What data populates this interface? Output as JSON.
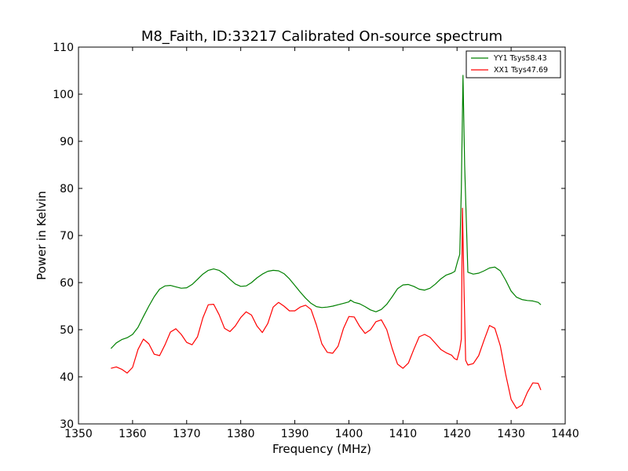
{
  "chart_data": {
    "type": "line",
    "title": "M8_Faith, ID:33217 Calibrated On-source spectrum",
    "xlabel": "Frequency (MHz)",
    "ylabel": "Power in Kelvin",
    "xlim": [
      1350,
      1440
    ],
    "ylim": [
      30,
      110
    ],
    "xticks": [
      1350,
      1360,
      1370,
      1380,
      1390,
      1400,
      1410,
      1420,
      1430,
      1440
    ],
    "yticks": [
      30,
      40,
      50,
      60,
      70,
      80,
      90,
      100,
      110
    ],
    "grid": false,
    "legend_position": "top-right",
    "series": [
      {
        "name": "YY1 Tsys58.43",
        "color": "#008000",
        "x": [
          1356,
          1357,
          1358,
          1359,
          1360,
          1361,
          1362,
          1363,
          1364,
          1365,
          1366,
          1367,
          1368,
          1369,
          1370,
          1371,
          1372,
          1373,
          1374,
          1375,
          1376,
          1377,
          1378,
          1379,
          1380,
          1381,
          1382,
          1383,
          1384,
          1385,
          1386,
          1387,
          1388,
          1389,
          1390,
          1391,
          1392,
          1393,
          1394,
          1395,
          1396,
          1397,
          1398,
          1399,
          1400,
          1400.3,
          1401,
          1402,
          1403,
          1404,
          1405,
          1406,
          1407,
          1408,
          1409,
          1410,
          1411,
          1412,
          1413,
          1414,
          1415,
          1416,
          1417,
          1418,
          1419,
          1419.6,
          1420.1,
          1420.5,
          1420.8,
          1421.1,
          1421.4,
          1422,
          1423,
          1424,
          1425,
          1426,
          1427,
          1428,
          1429,
          1430,
          1431,
          1432,
          1433,
          1434,
          1435,
          1435.5
        ],
        "values": [
          46.0,
          47.2,
          47.9,
          48.3,
          49.0,
          50.5,
          52.8,
          55.0,
          57.0,
          58.6,
          59.3,
          59.4,
          59.1,
          58.8,
          58.9,
          59.6,
          60.7,
          61.8,
          62.6,
          62.9,
          62.6,
          61.8,
          60.7,
          59.7,
          59.2,
          59.3,
          60.0,
          61.0,
          61.8,
          62.4,
          62.6,
          62.5,
          61.9,
          60.8,
          59.4,
          58.0,
          56.7,
          55.6,
          54.9,
          54.7,
          54.8,
          55.0,
          55.3,
          55.6,
          55.9,
          56.3,
          55.8,
          55.5,
          54.9,
          54.2,
          53.8,
          54.3,
          55.4,
          57.0,
          58.7,
          59.5,
          59.6,
          59.2,
          58.6,
          58.4,
          58.8,
          59.7,
          60.8,
          61.6,
          62.0,
          62.4,
          64.5,
          66.0,
          80.0,
          104.0,
          85.0,
          62.2,
          61.8,
          62.0,
          62.5,
          63.1,
          63.3,
          62.5,
          60.5,
          58.2,
          56.9,
          56.4,
          56.2,
          56.1,
          55.8,
          55.3
        ]
      },
      {
        "name": "XX1 Tsys47.69",
        "color": "#ff0000",
        "x": [
          1356,
          1357,
          1358,
          1359,
          1360,
          1361,
          1362,
          1363,
          1364,
          1365,
          1366,
          1367,
          1368,
          1369,
          1370,
          1371,
          1372,
          1373,
          1374,
          1375,
          1376,
          1377,
          1378,
          1379,
          1380,
          1381,
          1382,
          1383,
          1384,
          1385,
          1386,
          1387,
          1388,
          1389,
          1390,
          1391,
          1392,
          1393,
          1394,
          1395,
          1396,
          1397,
          1398,
          1399,
          1400,
          1401,
          1402,
          1403,
          1404,
          1405,
          1406,
          1407,
          1408,
          1409,
          1410,
          1411,
          1412,
          1413,
          1414,
          1415,
          1416,
          1417,
          1418,
          1419,
          1419.5,
          1420,
          1420.5,
          1420.8,
          1421,
          1421.3,
          1421.6,
          1422,
          1423,
          1424,
          1425,
          1426,
          1427,
          1428,
          1429,
          1430,
          1431,
          1432,
          1433,
          1434,
          1435,
          1435.5
        ],
        "values": [
          41.8,
          42.1,
          41.6,
          40.8,
          42.0,
          45.8,
          48.0,
          47.0,
          44.8,
          44.5,
          46.8,
          49.5,
          50.2,
          49.0,
          47.3,
          46.8,
          48.5,
          52.5,
          55.3,
          55.4,
          53.2,
          50.3,
          49.6,
          50.8,
          52.6,
          53.8,
          53.1,
          50.8,
          49.4,
          51.3,
          54.8,
          55.8,
          55.0,
          54.0,
          54.0,
          54.8,
          55.2,
          54.3,
          51.0,
          47.0,
          45.2,
          45.0,
          46.5,
          50.3,
          52.8,
          52.7,
          50.7,
          49.2,
          50.0,
          51.7,
          52.1,
          50.0,
          46.0,
          42.7,
          41.8,
          42.9,
          45.8,
          48.5,
          49.0,
          48.4,
          47.1,
          45.8,
          45.1,
          44.6,
          43.9,
          43.6,
          45.8,
          48.0,
          75.8,
          58.0,
          43.5,
          42.5,
          42.8,
          44.5,
          47.8,
          50.9,
          50.3,
          46.6,
          40.5,
          35.2,
          33.3,
          34.0,
          36.7,
          38.7,
          38.6,
          37.2
        ]
      }
    ]
  }
}
